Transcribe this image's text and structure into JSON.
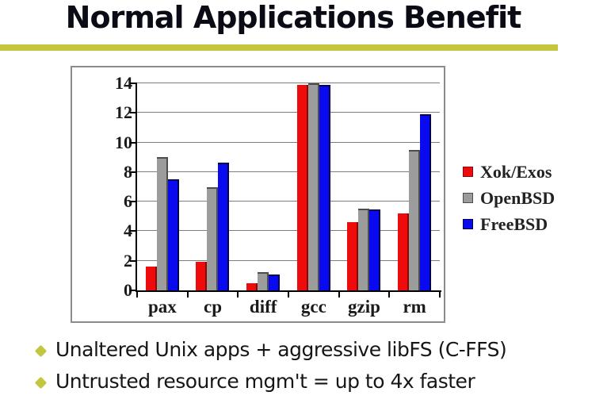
{
  "slide": {
    "title": "Normal Applications Benefit",
    "accent_color": "#c3c73f",
    "bullets": [
      {
        "text": "Unaltered Unix apps + aggressive libFS (C-FFS)"
      },
      {
        "text": "Untrusted resource mgm't = up to 4x faster"
      }
    ]
  },
  "chart_data": {
    "type": "bar",
    "title": "",
    "xlabel": "",
    "ylabel": "",
    "categories": [
      "pax",
      "cp",
      "diff",
      "gcc",
      "gzip",
      "rm"
    ],
    "series": [
      {
        "name": "Xok/Exos",
        "color": "#ee0b0b",
        "edge": "#8a0808",
        "edge_top": false,
        "values": [
          1.6,
          1.95,
          0.5,
          13.9,
          4.6,
          5.2
        ]
      },
      {
        "name": "OpenBSD",
        "color": "#9c9c9c",
        "edge": "#4d4d4d",
        "edge_top": true,
        "values": [
          9.0,
          7.0,
          1.25,
          14.0,
          5.55,
          9.5
        ]
      },
      {
        "name": "FreeBSD",
        "color": "#0a0af0",
        "edge": "#00004d",
        "edge_top": true,
        "values": [
          7.5,
          8.65,
          1.05,
          13.9,
          5.5,
          11.9
        ]
      }
    ],
    "ylim": [
      0,
      14
    ],
    "yticks": [
      0,
      2,
      4,
      6,
      8,
      10,
      12,
      14
    ],
    "grid": true,
    "gridline_color": "#7d7d7d",
    "legend_position": "right"
  }
}
